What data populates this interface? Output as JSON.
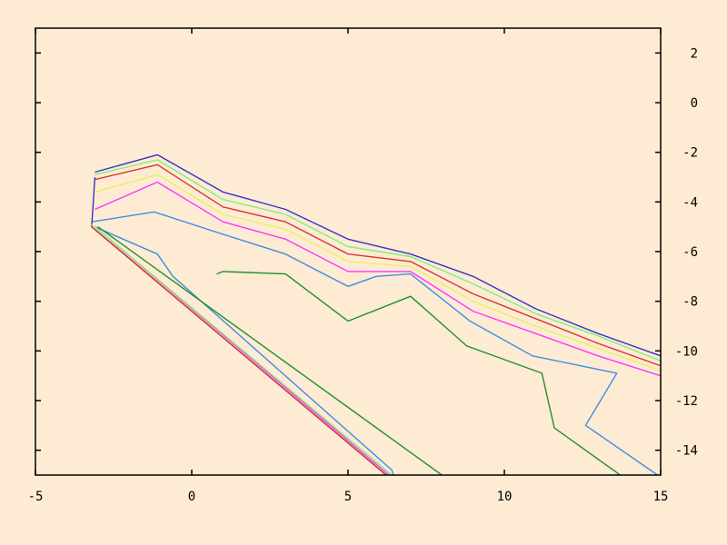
{
  "background_color": "#feebd3",
  "chart_data": {
    "type": "line",
    "title": "",
    "xlabel": "",
    "ylabel": "",
    "xlim": [
      -5,
      15
    ],
    "ylim": [
      -15,
      3
    ],
    "y_axis_side": "right",
    "grid": false,
    "legend": "none",
    "x_ticks": [
      -5,
      0,
      5,
      10,
      15
    ],
    "x_tick_labels": [
      "-5",
      "0",
      "5",
      "10",
      "15"
    ],
    "y_ticks": [
      2,
      0,
      -2,
      -4,
      -6,
      -8,
      -10,
      -12,
      -14
    ],
    "y_tick_labels": [
      "2",
      "0",
      "-2",
      "-4",
      "-6",
      "-8",
      "-10",
      "-12",
      "-14"
    ],
    "series": [
      {
        "color": "#1f8f2f",
        "points": [
          [
            0.8,
            -6.9
          ],
          [
            1.0,
            -6.8
          ],
          [
            3.0,
            -6.9
          ],
          [
            5.0,
            -8.8
          ],
          [
            7.0,
            -7.8
          ],
          [
            8.8,
            -9.8
          ],
          [
            11.2,
            -10.9
          ],
          [
            11.6,
            -13.1
          ],
          [
            13.6,
            -14.9
          ],
          [
            14.9,
            -16.2
          ]
        ]
      },
      {
        "color": "#3d8fe0",
        "points": [
          [
            -3.2,
            -4.8
          ],
          [
            -1.2,
            -4.4
          ],
          [
            1.0,
            -5.3
          ],
          [
            3.0,
            -6.1
          ],
          [
            5.0,
            -7.4
          ],
          [
            5.9,
            -7.0
          ],
          [
            7.0,
            -6.9
          ],
          [
            8.9,
            -8.8
          ],
          [
            10.9,
            -10.2
          ],
          [
            13.6,
            -10.9
          ],
          [
            12.6,
            -13.0
          ],
          [
            14.9,
            -15.0
          ]
        ]
      },
      {
        "color": "#ff33ff",
        "points": [
          [
            -3.1,
            -4.3
          ],
          [
            -1.1,
            -3.2
          ],
          [
            1.0,
            -4.8
          ],
          [
            3.0,
            -5.5
          ],
          [
            5.0,
            -6.8
          ],
          [
            7.0,
            -6.8
          ],
          [
            9.0,
            -8.4
          ],
          [
            11.0,
            -9.3
          ],
          [
            13.0,
            -10.2
          ],
          [
            15.0,
            -11.0
          ]
        ]
      },
      {
        "color": "#e8f060",
        "points": [
          [
            -3.1,
            -3.6
          ],
          [
            -1.1,
            -2.9
          ],
          [
            1.0,
            -4.5
          ],
          [
            3.0,
            -5.1
          ],
          [
            5.0,
            -6.4
          ],
          [
            7.0,
            -6.6
          ],
          [
            9.0,
            -8.0
          ],
          [
            11.0,
            -9.0
          ],
          [
            13.0,
            -9.9
          ],
          [
            15.0,
            -10.8
          ]
        ]
      },
      {
        "color": "#d9342b",
        "points": [
          [
            -3.1,
            -3.1
          ],
          [
            -1.1,
            -2.5
          ],
          [
            1.0,
            -4.2
          ],
          [
            3.0,
            -4.8
          ],
          [
            5.0,
            -6.1
          ],
          [
            7.0,
            -6.4
          ],
          [
            9.0,
            -7.7
          ],
          [
            11.0,
            -8.7
          ],
          [
            13.0,
            -9.7
          ],
          [
            15.0,
            -10.6
          ]
        ]
      },
      {
        "color": "#7ff080",
        "points": [
          [
            -3.1,
            -2.9
          ],
          [
            -1.1,
            -2.3
          ],
          [
            1.0,
            -3.9
          ],
          [
            3.0,
            -4.5
          ],
          [
            5.0,
            -5.8
          ],
          [
            7.0,
            -6.2
          ],
          [
            9.0,
            -7.3
          ],
          [
            11.0,
            -8.5
          ],
          [
            13.0,
            -9.4
          ],
          [
            15.0,
            -10.4
          ]
        ]
      },
      {
        "color": "#3434c8",
        "points": [
          [
            -3.1,
            -2.8
          ],
          [
            -1.1,
            -2.1
          ],
          [
            1.0,
            -3.6
          ],
          [
            3.0,
            -4.3
          ],
          [
            5.0,
            -5.5
          ],
          [
            7.0,
            -6.1
          ],
          [
            9.0,
            -7.0
          ],
          [
            11.0,
            -8.3
          ],
          [
            13.0,
            -9.3
          ],
          [
            15.0,
            -10.2
          ]
        ]
      },
      {
        "color": "#3d8fe0",
        "points": [
          [
            -3.1,
            -5.0
          ],
          [
            -1.1,
            -6.1
          ],
          [
            -0.6,
            -7.0
          ],
          [
            6.4,
            -14.8
          ],
          [
            6.5,
            -15.2
          ]
        ]
      },
      {
        "color": "#3434c8",
        "points": [
          [
            -3.1,
            -3.0
          ],
          [
            -3.2,
            -5.0
          ],
          [
            6.6,
            -15.4
          ]
        ]
      },
      {
        "color": "#d9342b",
        "points": [
          [
            -3.2,
            -5.0
          ],
          [
            6.5,
            -15.3
          ]
        ]
      },
      {
        "color": "#e8f060",
        "points": [
          [
            -3.2,
            -4.9
          ],
          [
            6.6,
            -15.2
          ]
        ]
      },
      {
        "color": "#ff33ff",
        "points": [
          [
            -3.1,
            -5.0
          ],
          [
            6.5,
            -15.2
          ]
        ]
      },
      {
        "color": "#1f8f2f",
        "points": [
          [
            -3.0,
            -5.0
          ],
          [
            8.0,
            -15.0
          ]
        ]
      },
      {
        "color": "#7ff080",
        "points": [
          [
            -3.1,
            -5.0
          ],
          [
            6.4,
            -15.0
          ]
        ]
      }
    ]
  }
}
